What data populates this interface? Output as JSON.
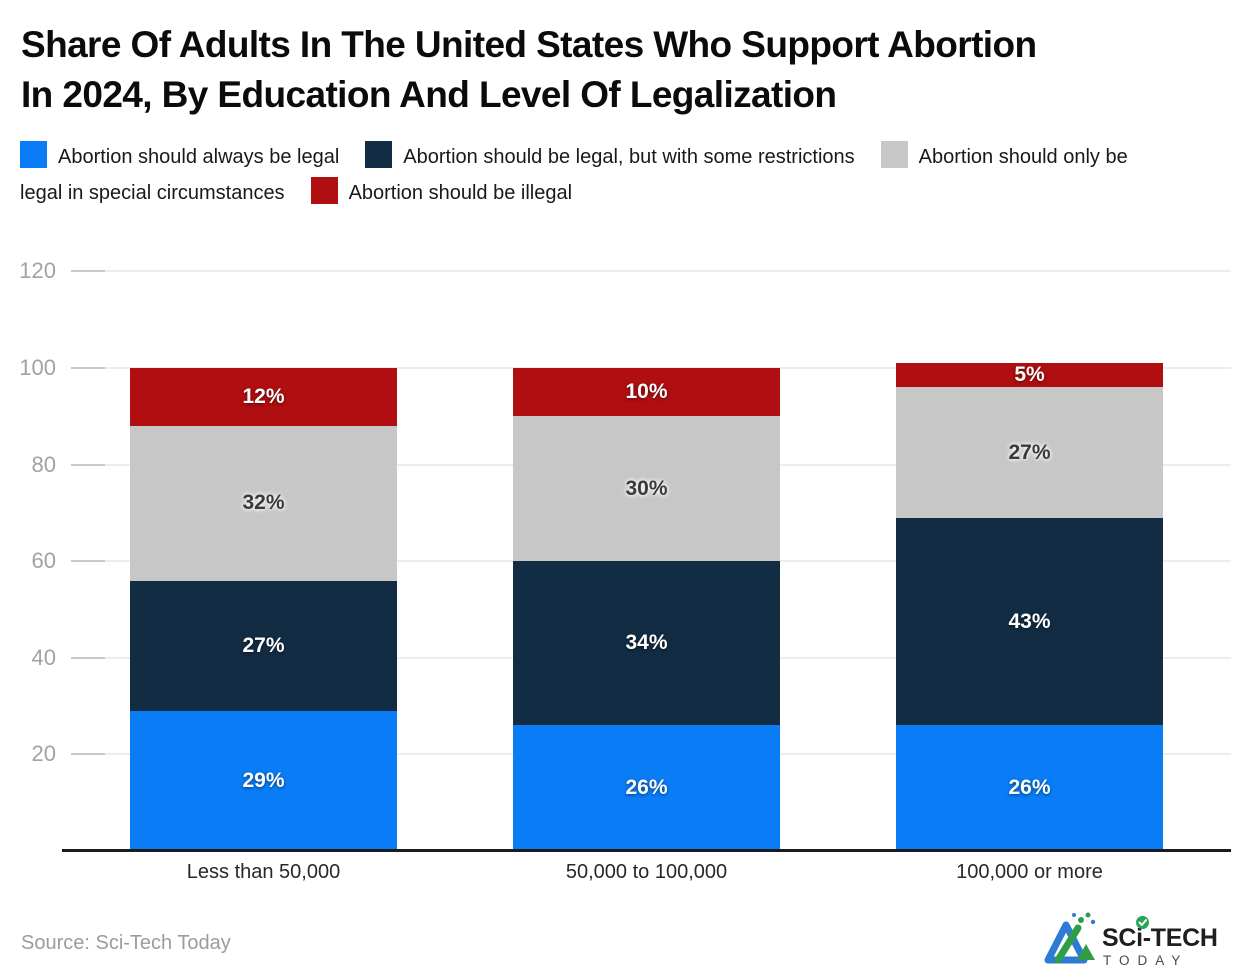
{
  "page": {
    "title_lines": [
      "Share Of Adults In The United States Who Support Abortion",
      "In 2024, By Education And Level Of Legalization"
    ],
    "source": "Source: Sci-Tech Today",
    "brand": {
      "name_primary": "SCi-TECH",
      "name_secondary": "TODAY",
      "check_icon_color": "#28a558",
      "icon_blue": "#2d7bd2",
      "icon_green": "#2f9e49"
    }
  },
  "chart_data": {
    "type": "bar",
    "stacked": true,
    "stack_order": "bottom-to-top",
    "title": "Share Of Adults In The United States Who Support Abortion In 2024, By Education And Level Of Legalization",
    "categories": [
      "Less than 50,000",
      "50,000 to 100,000",
      "100,000 or more"
    ],
    "series": [
      {
        "name": "Abortion should always be legal",
        "color": "#0a7cf6",
        "label_color": "#ffffff",
        "values": [
          29,
          26,
          26
        ]
      },
      {
        "name": "Abortion should be legal, but with some restrictions",
        "color": "#122c44",
        "label_color": "#ffffff",
        "values": [
          27,
          34,
          43
        ]
      },
      {
        "name": "Abortion should only be legal in special circumstances",
        "color": "#c7c7c8",
        "label_color": "#3a3a3a",
        "values": [
          32,
          30,
          27
        ]
      },
      {
        "name": "Abortion should be illegal",
        "color": "#b00e10",
        "label_color": "#ffffff",
        "values": [
          12,
          10,
          5
        ]
      }
    ],
    "value_suffix": "%",
    "ylim": [
      0,
      120
    ],
    "yticks": [
      20,
      40,
      60,
      80,
      100,
      120
    ],
    "grid": true,
    "legend_position": "top",
    "xlabel": "",
    "ylabel": ""
  }
}
